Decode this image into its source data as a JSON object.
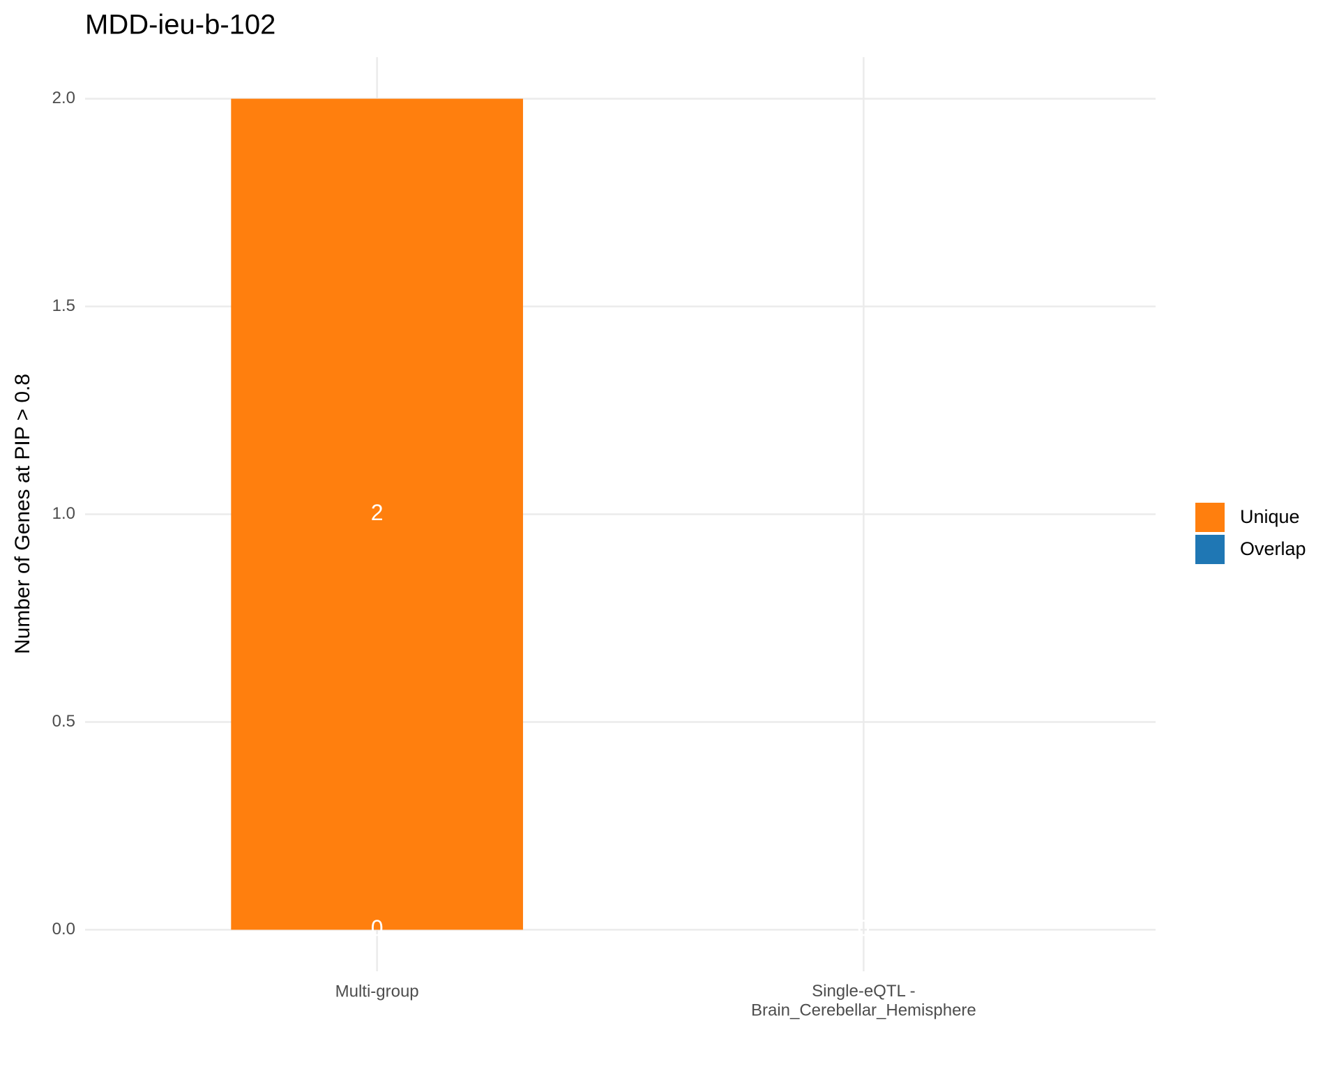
{
  "chart_data": {
    "type": "stacked-bar",
    "title": "MDD-ieu-b-102",
    "ylabel": "Number of Genes at PIP > 0.8",
    "categories": [
      "Multi-group",
      "Single-eQTL -\nBrain_Cerebellar_Hemisphere"
    ],
    "series": [
      {
        "name": "Unique",
        "color": "#ff7f0e",
        "values": [
          2,
          0
        ]
      },
      {
        "name": "Overlap",
        "color": "#1f77b4",
        "values": [
          0,
          0
        ]
      }
    ],
    "stack_order": [
      "Overlap",
      "Unique"
    ],
    "ylim": [
      -0.1,
      2.1
    ],
    "yticks": [
      {
        "value": 0,
        "label": "0.0"
      },
      0.5,
      {
        "value": 1,
        "label": "1.0"
      },
      1.5,
      {
        "value": 2,
        "label": "2.0"
      }
    ],
    "grid": true,
    "legend": "right"
  }
}
